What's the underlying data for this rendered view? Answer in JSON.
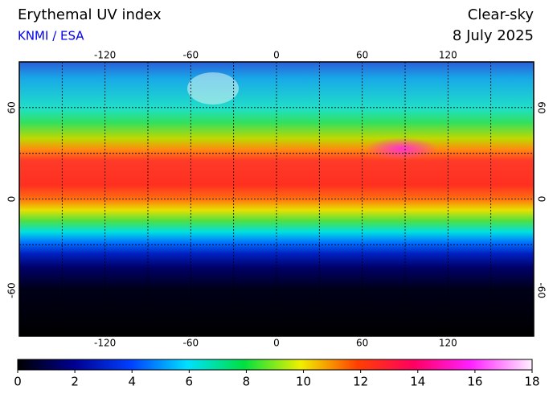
{
  "header": {
    "title": "Erythemal UV index",
    "source": "KNMI / ESA",
    "mode": "Clear-sky",
    "date": "8 July 2025"
  },
  "map": {
    "lon_range": [
      -180,
      180
    ],
    "lat_range": [
      -90,
      90
    ],
    "lon_ticks": [
      -120,
      -60,
      0,
      60,
      120
    ],
    "lat_ticks": [
      60,
      0,
      -60
    ],
    "grid": true
  },
  "colorbar": {
    "range": [
      0,
      18
    ],
    "ticks": [
      0,
      2,
      4,
      6,
      8,
      10,
      12,
      14,
      16,
      18
    ]
  }
}
